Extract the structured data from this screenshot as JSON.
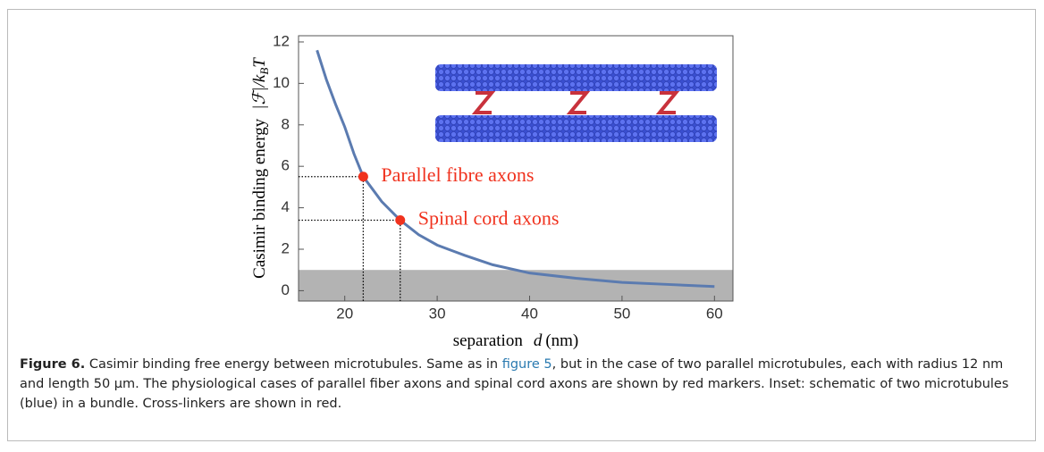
{
  "chart_data": {
    "type": "line",
    "ylabel": {
      "text": "Casimir binding energy",
      "math": "|ℱ|/k",
      "sub": "B",
      "tail": "T"
    },
    "xlabel": {
      "text": "separation",
      "var": "d",
      "unit": "(nm)"
    },
    "xlim": [
      15,
      62
    ],
    "xticks": [
      20,
      30,
      40,
      50,
      60
    ],
    "ylim": [
      -0.5,
      12.3
    ],
    "yticks": [
      0,
      2,
      4,
      6,
      8,
      10,
      12
    ],
    "band": {
      "ylim": [
        -0.5,
        1
      ],
      "color": "#b3b3b3"
    },
    "series": [
      {
        "color": "#5b7bb0",
        "x": [
          17,
          18,
          19,
          20,
          21,
          22,
          23,
          24,
          26,
          28,
          30,
          33,
          36,
          40,
          45,
          50,
          55,
          60
        ],
        "values": [
          11.6,
          10.2,
          9,
          7.9,
          6.6,
          5.5,
          4.9,
          4.3,
          3.4,
          2.7,
          2.2,
          1.7,
          1.25,
          0.85,
          0.6,
          0.4,
          0.3,
          0.2
        ]
      }
    ],
    "markers": {
      "color": "#f0321e",
      "x": [
        22,
        26
      ],
      "values": [
        5.5,
        3.4
      ],
      "labels": [
        "Parallel fibre axons",
        "Spinal cord axons"
      ]
    }
  },
  "caption": {
    "label": "Figure 6.",
    "parts": [
      "Casimir binding free energy between microtubules. Same as in ",
      "figure 5",
      ", but in the case of two parallel microtubules, each with radius 12 nm and length 50 μm. The physiological cases of parallel fiber axons and spinal cord axons are shown by red markers. Inset: schematic of two microtubules (blue) in a bundle. Cross-linkers are shown in red."
    ]
  }
}
